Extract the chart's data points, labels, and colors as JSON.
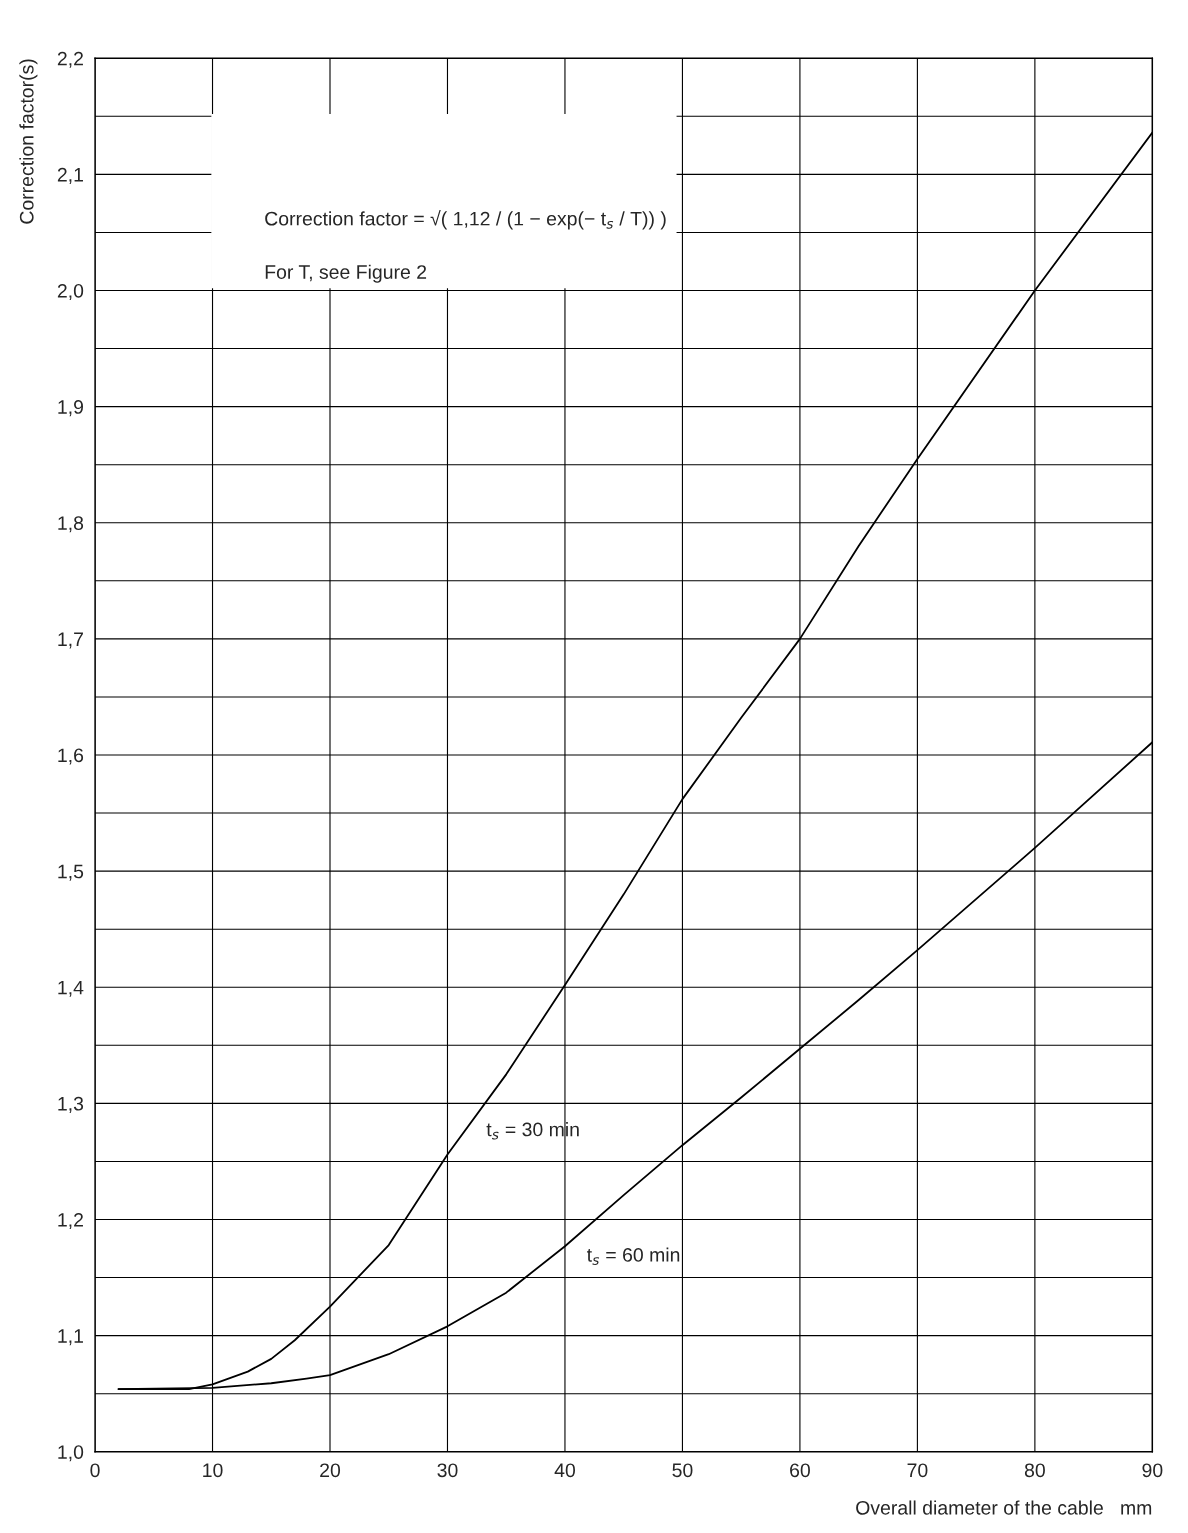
{
  "chart_data": {
    "type": "line",
    "xlabel": "Overall diameter of the cable   mm",
    "ylabel": "Correction factor(s)",
    "series": [
      {
        "color": "#000000",
        "x": [
          2,
          8,
          10,
          13,
          15,
          17,
          20,
          25,
          30,
          35,
          40,
          45,
          50,
          55,
          60,
          65,
          70,
          80,
          90
        ],
        "values": [
          1.054,
          1.054,
          1.058,
          1.069,
          1.08,
          1.096,
          1.125,
          1.178,
          1.256,
          1.325,
          1.402,
          1.48,
          1.562,
          1.632,
          1.7,
          1.78,
          1.855,
          2.0,
          2.136
        ]
      },
      {
        "color": "#000000",
        "x": [
          2,
          10,
          15,
          18,
          20,
          25,
          30,
          35,
          40,
          45,
          50,
          55,
          60,
          65,
          70,
          80,
          90
        ],
        "values": [
          1.054,
          1.055,
          1.059,
          1.063,
          1.066,
          1.084,
          1.108,
          1.137,
          1.177,
          1.221,
          1.264,
          1.305,
          1.347,
          1.389,
          1.432,
          1.52,
          1.611
        ]
      }
    ],
    "annotations": [
      "t$_{s}$ = 30 min",
      "t$_{s}$ = 60 min",
      "Correction factor = √( 1,12 / (1 − exp(− t$_{s}$ / T)) )\n\nFor T, see Figure 2"
    ],
    "xlim": [
      0,
      90
    ],
    "ylim": [
      1.0,
      2.2
    ],
    "xticks": [
      0,
      10,
      20,
      30,
      40,
      50,
      60,
      70,
      80,
      90
    ],
    "yticks": [
      {
        "value": 1.0,
        "label": "1,0"
      },
      {
        "value": 1.05,
        "label": null
      },
      {
        "value": 1.1,
        "label": "1,1"
      },
      {
        "value": 1.15,
        "label": null
      },
      {
        "value": 1.2,
        "label": "1,2"
      },
      {
        "value": 1.25,
        "label": null
      },
      {
        "value": 1.3,
        "label": "1,3"
      },
      {
        "value": 1.35,
        "label": null
      },
      {
        "value": 1.4,
        "label": "1,4"
      },
      {
        "value": 1.45,
        "label": null
      },
      {
        "value": 1.5,
        "label": "1,5"
      },
      {
        "value": 1.55,
        "label": null
      },
      {
        "value": 1.6,
        "label": "1,6"
      },
      {
        "value": 1.65,
        "label": null
      },
      {
        "value": 1.7,
        "label": "1,7"
      },
      {
        "value": 1.75,
        "label": null
      },
      {
        "value": 1.8,
        "label": "1,8"
      },
      {
        "value": 1.85,
        "label": null
      },
      {
        "value": 1.9,
        "label": "1,9"
      },
      {
        "value": 1.95,
        "label": null
      },
      {
        "value": 2.0,
        "label": "2,0"
      },
      {
        "value": 2.05,
        "label": null
      },
      {
        "value": 2.1,
        "label": "2,1"
      },
      {
        "value": 2.15,
        "label": null
      },
      {
        "value": 2.2,
        "label": "2,2"
      }
    ],
    "grid": true,
    "legend": false,
    "marker": "none",
    "line_style": "solid"
  }
}
